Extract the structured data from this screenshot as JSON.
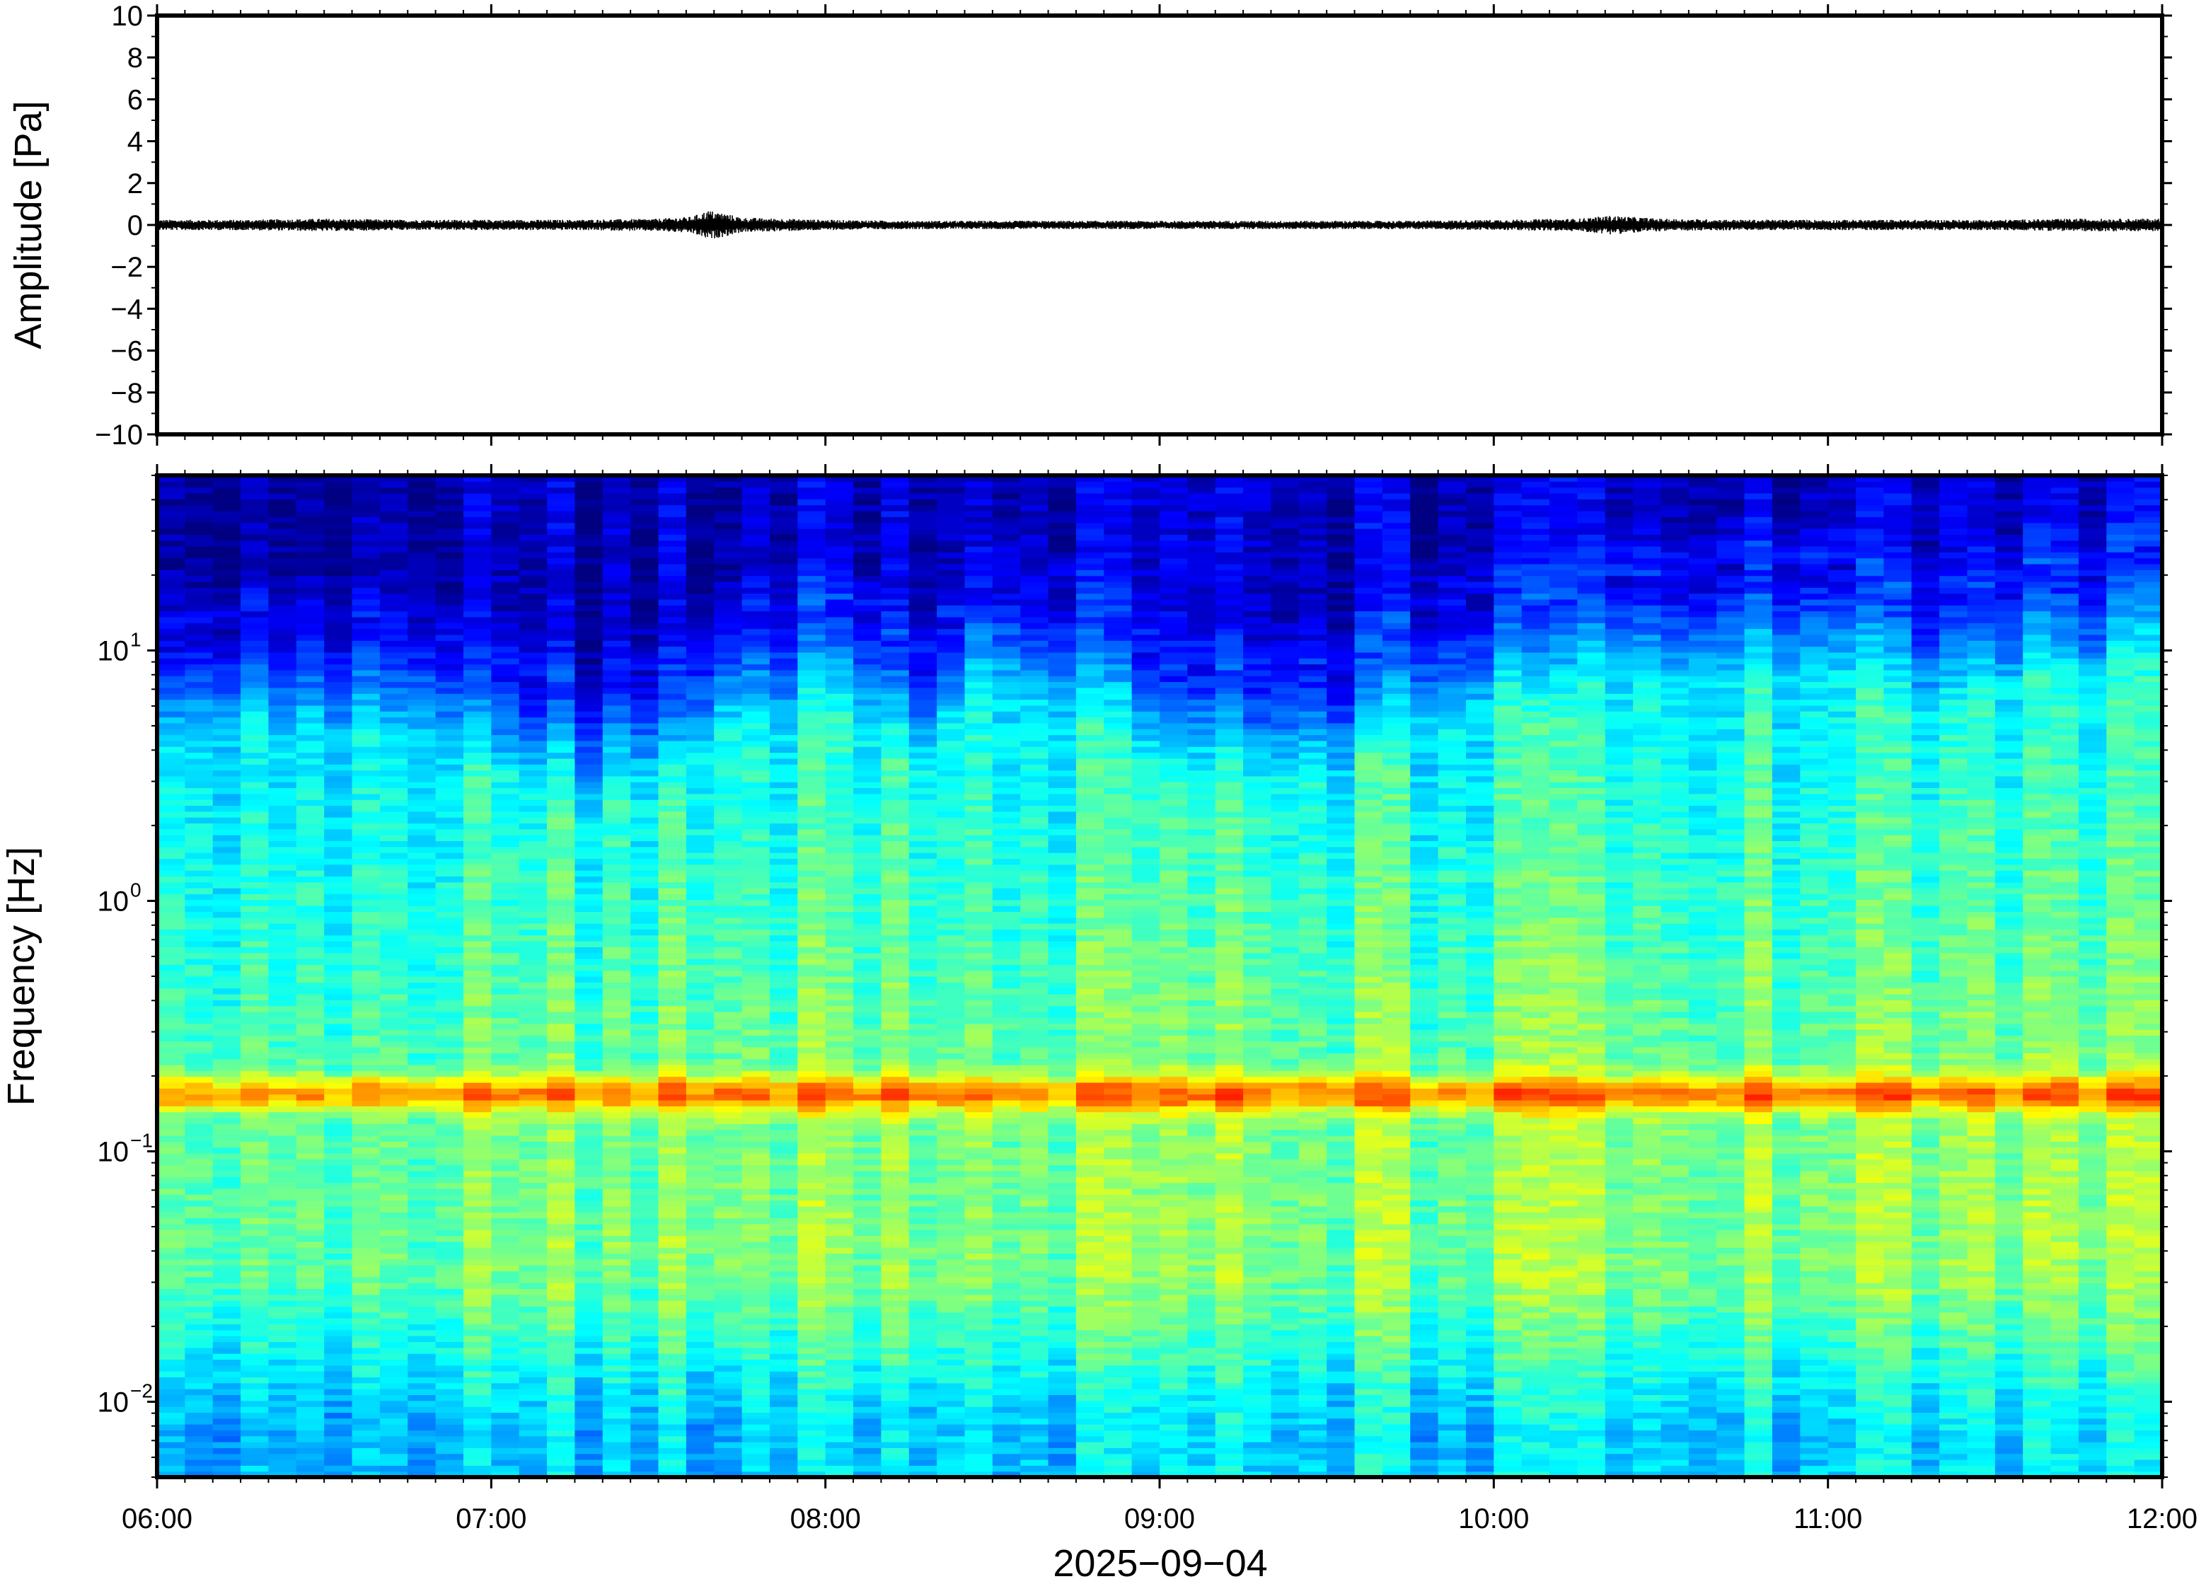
{
  "chart_data": [
    {
      "type": "line",
      "title": "",
      "xlabel": "",
      "ylabel": "Amplitude [Pa]",
      "ylim": [
        -10,
        10
      ],
      "yticks": [
        -10,
        -8,
        -6,
        -4,
        -2,
        0,
        2,
        4,
        6,
        8,
        10
      ],
      "ytick_labels": [
        "−10",
        "−8",
        "−6",
        "−4",
        "−2",
        "0",
        "2",
        "4",
        "6",
        "8",
        "10"
      ],
      "xlim": [
        "06:00",
        "12:00"
      ],
      "grid": false,
      "series": [
        {
          "color": "#000000",
          "x_hours": [
            6.0,
            6.25,
            6.5,
            6.75,
            7.0,
            7.25,
            7.5,
            7.6,
            7.65,
            7.7,
            7.75,
            8.0,
            8.25,
            8.5,
            8.75,
            9.0,
            9.25,
            9.5,
            9.75,
            10.0,
            10.25,
            10.35,
            10.5,
            10.75,
            11.0,
            11.25,
            11.5,
            11.75,
            12.0
          ],
          "envelope_pa": [
            0.25,
            0.25,
            0.3,
            0.25,
            0.25,
            0.25,
            0.3,
            0.4,
            0.7,
            0.55,
            0.35,
            0.25,
            0.2,
            0.2,
            0.2,
            0.2,
            0.2,
            0.2,
            0.2,
            0.25,
            0.3,
            0.45,
            0.3,
            0.25,
            0.25,
            0.25,
            0.25,
            0.3,
            0.3
          ]
        }
      ]
    },
    {
      "type": "heatmap",
      "title": "",
      "xlabel": "2025−09−04",
      "ylabel": "Frequency [Hz]",
      "y_scale": "log",
      "ylim": [
        0.005,
        50
      ],
      "yticks": [
        0.01,
        0.1,
        1,
        10
      ],
      "ytick_labels": [
        {
          "base": "10",
          "exp": "−2"
        },
        {
          "base": "10",
          "exp": "−1"
        },
        {
          "base": "10",
          "exp": "0"
        },
        {
          "base": "10",
          "exp": "1"
        }
      ],
      "xlim": [
        "06:00",
        "12:00"
      ],
      "xticks": [
        "06:00",
        "07:00",
        "08:00",
        "09:00",
        "10:00",
        "11:00",
        "12:00"
      ],
      "colormap": "jet",
      "grid": false,
      "features": {
        "microseism_band_hz": 0.17,
        "upper_cutoff_hz": [
          12,
          15,
          14,
          14,
          8,
          7,
          8,
          14,
          17,
          9,
          20,
          14,
          9,
          8,
          8,
          15,
          17,
          18,
          20,
          21,
          20,
          15,
          20,
          22,
          24
        ],
        "transient_event_time": "07:40"
      }
    }
  ]
}
